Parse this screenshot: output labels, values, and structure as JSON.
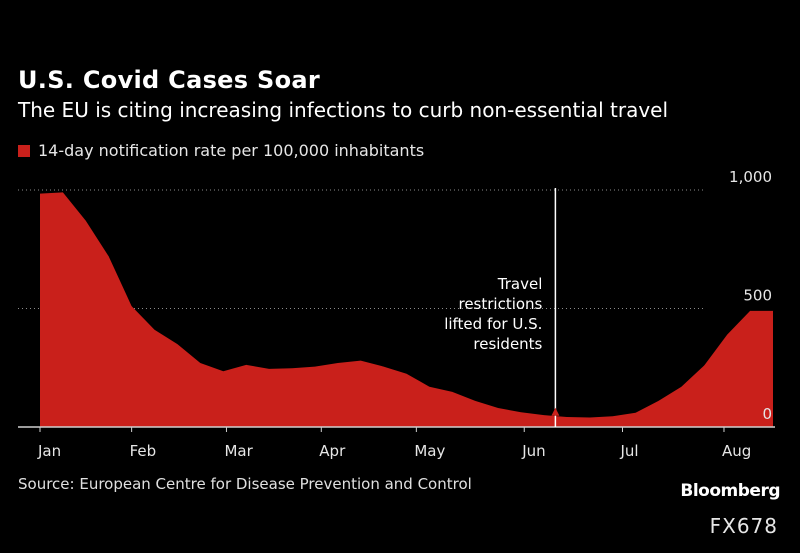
{
  "header": {
    "title": "U.S. Covid Cases Soar",
    "subtitle": "The EU is citing increasing infections to curb non-essential travel"
  },
  "legend": {
    "label": "14-day notification rate per 100,000 inhabitants"
  },
  "colors": {
    "series": "#c9201b",
    "background": "#000000",
    "grid": "#8c8c8c",
    "annotation": "#ffffff"
  },
  "chart_data": {
    "type": "area",
    "title": "U.S. Covid Cases Soar",
    "subtitle": "The EU is citing increasing infections to curb non-essential travel",
    "xlabel": "",
    "ylabel": "",
    "ylim": [
      0,
      1000
    ],
    "yticks": [
      0,
      500,
      1000
    ],
    "ytick_labels": [
      "0",
      "500",
      "1,000"
    ],
    "xlim": [
      0,
      32
    ],
    "xticks": [
      0,
      4,
      8.14,
      12.28,
      16.43,
      21.14,
      25.43,
      29.86
    ],
    "xtick_labels": [
      "Jan",
      "Feb",
      "Mar",
      "Apr",
      "May",
      "Jun",
      "Jul",
      "Aug"
    ],
    "grid": true,
    "series": [
      {
        "name": "14-day notification rate per 100,000 inhabitants",
        "x": [
          0,
          1,
          2,
          3,
          4,
          5,
          6,
          7,
          8,
          9,
          10,
          11,
          12,
          13,
          14,
          15,
          16,
          17,
          18,
          19,
          20,
          21,
          22,
          23,
          24,
          25,
          26,
          27,
          28,
          29,
          30,
          31,
          32
        ],
        "values": [
          985,
          990,
          870,
          720,
          510,
          410,
          350,
          270,
          235,
          262,
          245,
          248,
          255,
          270,
          280,
          255,
          225,
          170,
          148,
          110,
          80,
          62,
          50,
          42,
          40,
          45,
          60,
          110,
          170,
          260,
          390,
          490,
          490
        ]
      }
    ],
    "annotations": [
      {
        "x": 22.5,
        "lines": [
          "Travel",
          "restrictions",
          "lifted for U.S.",
          "residents"
        ]
      }
    ]
  },
  "footer": {
    "source": "Source: European Centre for Disease Prevention and Control",
    "brand": "Bloomberg",
    "code": "FX678"
  }
}
